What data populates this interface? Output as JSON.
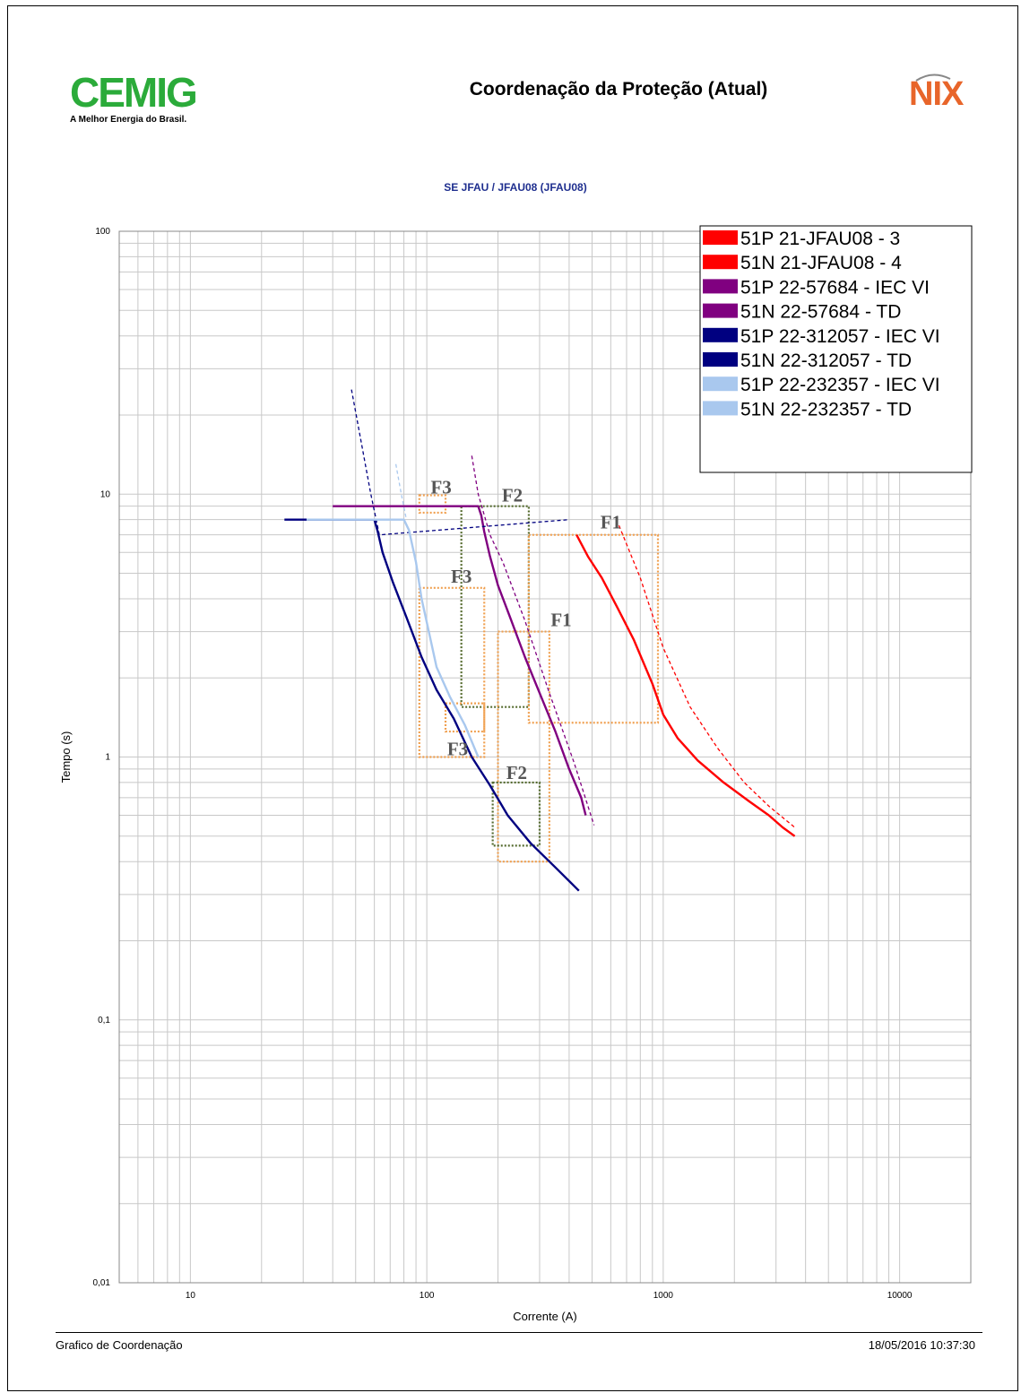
{
  "header": {
    "logo_left_text": "CEMIG",
    "logo_left_subtitle": "A Melhor Energia do Brasil.",
    "report_title": "Coordenação da Proteção (Atual)",
    "logo_right_text": "NIX"
  },
  "footer": {
    "left_text": "Grafico de Coordenação",
    "right_text": "18/05/2016 10:37:30"
  },
  "chart_data": {
    "type": "line",
    "title": "SE JFAU / JFAU08 (JFAU08)",
    "xlabel": "Corrente (A)",
    "ylabel": "Tempo (s)",
    "x_scale": "log",
    "y_scale": "log",
    "xlim": [
      5,
      20000
    ],
    "ylim": [
      0.01,
      100
    ],
    "grid": true,
    "legend_position": "top-right",
    "x_ticks": [
      {
        "value": 10,
        "label": "10"
      },
      {
        "value": 100,
        "label": "100"
      },
      {
        "value": 1000,
        "label": "1000"
      },
      {
        "value": 10000,
        "label": "10000"
      }
    ],
    "y_ticks": [
      {
        "value": 100,
        "label": "100"
      },
      {
        "value": 10,
        "label": "10"
      },
      {
        "value": 1,
        "label": "1"
      },
      {
        "value": 0.1,
        "label": "0,1"
      },
      {
        "value": 0.01,
        "label": "0,01"
      }
    ],
    "series": [
      {
        "name": "51P 21-JFAU08 - 3",
        "color": "#ff0000",
        "dash": "solid",
        "points": [
          [
            430,
            7
          ],
          [
            480,
            5.8
          ],
          [
            550,
            4.8
          ],
          [
            640,
            3.7
          ],
          [
            750,
            2.8
          ],
          [
            900,
            1.9
          ],
          [
            1000,
            1.45
          ],
          [
            1150,
            1.18
          ],
          [
            1400,
            0.97
          ],
          [
            1800,
            0.8
          ],
          [
            2300,
            0.68
          ],
          [
            2800,
            0.6
          ],
          [
            3200,
            0.54
          ],
          [
            3600,
            0.5
          ]
        ]
      },
      {
        "name": "51N 21-JFAU08 - 4",
        "color": "#ff0000",
        "dash": "dashed",
        "points": [
          [
            650,
            7.6
          ],
          [
            800,
            4.8
          ],
          [
            1000,
            2.6
          ],
          [
            1300,
            1.55
          ],
          [
            1700,
            1.08
          ],
          [
            2200,
            0.8
          ],
          [
            2800,
            0.65
          ],
          [
            3600,
            0.54
          ]
        ]
      },
      {
        "name": "51P 22-57684 - IEC VI",
        "color": "#800080",
        "dash": "solid",
        "points": [
          [
            40,
            9
          ],
          [
            100,
            9
          ],
          [
            165,
            9
          ],
          [
            170,
            8.3
          ],
          [
            175,
            7.2
          ],
          [
            185,
            5.8
          ],
          [
            200,
            4.5
          ],
          [
            225,
            3.4
          ],
          [
            260,
            2.4
          ],
          [
            300,
            1.75
          ],
          [
            350,
            1.25
          ],
          [
            400,
            0.9
          ],
          [
            450,
            0.7
          ],
          [
            470,
            0.6
          ]
        ]
      },
      {
        "name": "51N 22-57684 - TD",
        "color": "#800080",
        "dash": "dashed",
        "points": [
          [
            155,
            14
          ],
          [
            165,
            10
          ],
          [
            185,
            7
          ],
          [
            210,
            5.5
          ],
          [
            260,
            3.3
          ],
          [
            330,
            1.75
          ],
          [
            420,
            0.95
          ],
          [
            510,
            0.55
          ]
        ]
      },
      {
        "name": "51P 22-312057 - IEC VI",
        "color": "#000080",
        "dash": "solid",
        "points": [
          [
            25,
            8
          ],
          [
            60,
            8
          ],
          [
            62,
            7.2
          ],
          [
            65,
            6
          ],
          [
            72,
            4.6
          ],
          [
            82,
            3.4
          ],
          [
            95,
            2.4
          ],
          [
            110,
            1.8
          ],
          [
            130,
            1.4
          ],
          [
            155,
            1.0
          ],
          [
            185,
            0.78
          ],
          [
            220,
            0.6
          ],
          [
            275,
            0.47
          ],
          [
            350,
            0.38
          ],
          [
            440,
            0.31
          ]
        ]
      },
      {
        "name": "51N 22-312057 - TD",
        "color": "#000080",
        "dash": "dashed",
        "points": [
          [
            48,
            25
          ],
          [
            52,
            17
          ],
          [
            58,
            10
          ],
          [
            63,
            7
          ],
          [
            400,
            8
          ]
        ]
      },
      {
        "name": "51P 22-232357 - IEC VI",
        "color": "#a9c8ee",
        "dash": "solid",
        "points": [
          [
            31,
            8
          ],
          [
            80,
            8
          ],
          [
            84,
            7.3
          ],
          [
            90,
            5.5
          ],
          [
            95,
            4
          ],
          [
            102,
            3
          ],
          [
            110,
            2.2
          ],
          [
            125,
            1.7
          ],
          [
            145,
            1.32
          ],
          [
            165,
            1.0
          ]
        ]
      },
      {
        "name": "51N 22-232357 - TD",
        "color": "#a9c8ee",
        "dash": "dashed",
        "points": [
          [
            74,
            13
          ],
          [
            78,
            10
          ],
          [
            82,
            8
          ]
        ]
      }
    ],
    "boxes": [
      {
        "label": "F3",
        "color": "#f0a050",
        "x": [
          93,
          120
        ],
        "y": [
          8.5,
          9.9
        ]
      },
      {
        "label": "F2",
        "color": "#556b2f",
        "x": [
          140,
          270
        ],
        "y": [
          1.55,
          9.0
        ]
      },
      {
        "label": "F1",
        "color": "#f0a050",
        "x": [
          270,
          950
        ],
        "y": [
          1.35,
          7.0
        ]
      },
      {
        "label": "F3",
        "color": "#f0a050",
        "x": [
          93,
          175
        ],
        "y": [
          1.0,
          4.4
        ]
      },
      {
        "label": "F3",
        "color": "#f0a050",
        "x": [
          120,
          175
        ],
        "y": [
          1.25,
          1.6
        ]
      },
      {
        "label": "F1",
        "color": "#f0a050",
        "x": [
          200,
          330
        ],
        "y": [
          0.4,
          3.0
        ]
      },
      {
        "label": "F2",
        "color": "#556b2f",
        "x": [
          190,
          300
        ],
        "y": [
          0.46,
          0.8
        ]
      }
    ],
    "box_labels": [
      {
        "text": "F3",
        "x": 115,
        "y": 10.7
      },
      {
        "text": "F2",
        "x": 230,
        "y": 10.0
      },
      {
        "text": "F1",
        "x": 600,
        "y": 7.9
      },
      {
        "text": "F3",
        "x": 140,
        "y": 4.9
      },
      {
        "text": "F1",
        "x": 370,
        "y": 3.35
      },
      {
        "text": "F3",
        "x": 135,
        "y": 1.08
      },
      {
        "text": "F2",
        "x": 240,
        "y": 0.88
      }
    ]
  }
}
